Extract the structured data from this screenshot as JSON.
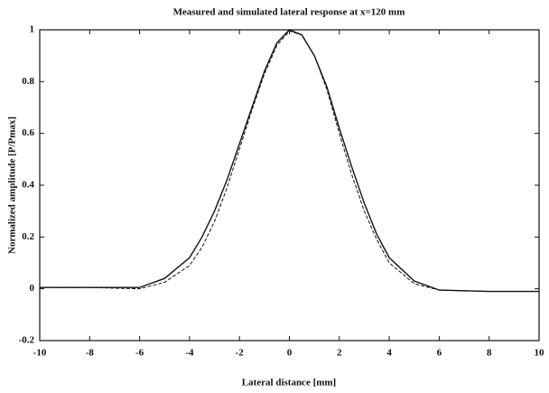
{
  "chart_data": {
    "type": "line",
    "title": "Measured and simulated lateral response at x=120 mm",
    "x_label": "Lateral distance [mm]",
    "y_label": "Normalized amplitude [P/Pmax]",
    "x": [
      -10,
      -8,
      -6,
      -5,
      -4,
      -3.5,
      -3,
      -2.5,
      -2,
      -1.5,
      -1,
      -0.5,
      0,
      0.5,
      1,
      1.5,
      2,
      2.5,
      3,
      3.5,
      4,
      5,
      6,
      8,
      10
    ],
    "series": [
      {
        "color": "#111111",
        "dash": "solid",
        "values": [
          0.005,
          0.005,
          0.005,
          0.04,
          0.12,
          0.2,
          0.3,
          0.42,
          0.56,
          0.7,
          0.84,
          0.95,
          1.0,
          0.98,
          0.9,
          0.78,
          0.62,
          0.47,
          0.33,
          0.21,
          0.12,
          0.03,
          -0.005,
          -0.01,
          -0.01
        ]
      },
      {
        "color": "#111111",
        "dash": "dashed",
        "values": [
          0.005,
          0.005,
          0.0,
          0.025,
          0.09,
          0.16,
          0.26,
          0.39,
          0.54,
          0.69,
          0.83,
          0.94,
          0.995,
          0.98,
          0.9,
          0.77,
          0.6,
          0.44,
          0.3,
          0.19,
          0.1,
          0.02,
          -0.005,
          -0.01,
          -0.01
        ]
      }
    ],
    "xlim": [
      -10,
      10
    ],
    "xticks": [
      -10,
      -8,
      -6,
      -4,
      -2,
      0,
      2,
      4,
      6,
      8,
      10
    ],
    "ylim": [
      -0.2,
      1
    ],
    "yticks": [
      -0.2,
      0,
      0.2,
      0.4,
      0.6,
      0.8,
      1
    ],
    "grid": false
  }
}
